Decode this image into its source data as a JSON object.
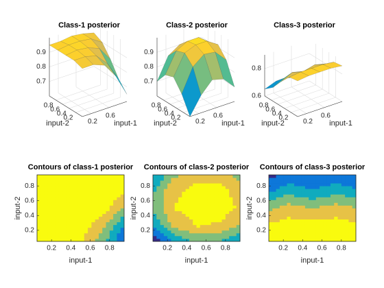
{
  "colormap": [
    "#352a87",
    "#0363e1",
    "#1485d4",
    "#06a7c6",
    "#38b99e",
    "#92bf73",
    "#d9ba56",
    "#fcce2e",
    "#f9fb0e"
  ],
  "chart_data": [
    {
      "type": "surface",
      "title": "Class-1 posterior",
      "xlabel": "input-1",
      "ylabel": "input-2",
      "x": [
        0,
        0.25,
        0.5,
        0.75,
        1
      ],
      "y": [
        0,
        0.25,
        0.5,
        0.75,
        1
      ],
      "z": [
        [
          0.93,
          0.93,
          0.9,
          0.8,
          0.65
        ],
        [
          0.95,
          0.95,
          0.93,
          0.85,
          0.72
        ],
        [
          0.95,
          0.96,
          0.95,
          0.92,
          0.82
        ],
        [
          0.95,
          0.96,
          0.96,
          0.95,
          0.9
        ],
        [
          0.95,
          0.95,
          0.96,
          0.95,
          0.93
        ]
      ],
      "xlim": [
        0,
        1
      ],
      "ylim": [
        0,
        1
      ],
      "zlim": [
        0.6,
        1
      ],
      "xticks": [
        0.2,
        0.6
      ],
      "yticks": [
        0.2,
        0.4,
        0.6,
        0.8
      ],
      "zticks": [
        0.7,
        0.8,
        0.9
      ]
    },
    {
      "type": "surface",
      "title": "Class-2 posterior",
      "xlabel": "input-1",
      "ylabel": "input-2",
      "x": [
        0,
        0.25,
        0.5,
        0.75,
        1
      ],
      "y": [
        0,
        0.25,
        0.5,
        0.75,
        1
      ],
      "z": [
        [
          0.6,
          0.72,
          0.8,
          0.78,
          0.7
        ],
        [
          0.72,
          0.88,
          0.94,
          0.93,
          0.85
        ],
        [
          0.8,
          0.94,
          0.97,
          0.97,
          0.92
        ],
        [
          0.78,
          0.92,
          0.96,
          0.96,
          0.9
        ],
        [
          0.7,
          0.85,
          0.9,
          0.9,
          0.82
        ]
      ],
      "xlim": [
        0,
        1
      ],
      "ylim": [
        0,
        1
      ],
      "zlim": [
        0.6,
        1
      ],
      "xticks": [
        0.2,
        0.6
      ],
      "yticks": [
        0.2,
        0.4,
        0.6,
        0.8
      ],
      "zticks": [
        0.7,
        0.8,
        0.9
      ]
    },
    {
      "type": "surface",
      "title": "Class-3 posterior",
      "xlabel": "input-1",
      "ylabel": "input-2",
      "x": [
        0,
        0.25,
        0.5,
        0.75,
        1
      ],
      "y": [
        0,
        0.25,
        0.5,
        0.75,
        1
      ],
      "z": [
        [
          0.86,
          0.87,
          0.87,
          0.87,
          0.86
        ],
        [
          0.85,
          0.86,
          0.86,
          0.86,
          0.85
        ],
        [
          0.78,
          0.82,
          0.8,
          0.82,
          0.8
        ],
        [
          0.7,
          0.74,
          0.72,
          0.74,
          0.72
        ],
        [
          0.65,
          0.68,
          0.68,
          0.68,
          0.66
        ]
      ],
      "xlim": [
        0,
        1
      ],
      "ylim": [
        0,
        1
      ],
      "zlim": [
        0.6,
        0.9
      ],
      "xticks": [
        0.2,
        0.6
      ],
      "yticks": [
        0.2,
        0.4,
        0.6,
        0.8
      ],
      "zticks": [
        0.6,
        0.8
      ]
    },
    {
      "type": "contour",
      "title": "Contours of class-1 posterior",
      "xlabel": "input-1",
      "ylabel": "input-2",
      "x": [
        0,
        0.25,
        0.5,
        0.75,
        1
      ],
      "y": [
        0,
        0.25,
        0.5,
        0.75,
        1
      ],
      "z": [
        [
          0.93,
          0.93,
          0.9,
          0.8,
          0.65
        ],
        [
          0.95,
          0.95,
          0.93,
          0.85,
          0.72
        ],
        [
          0.95,
          0.96,
          0.95,
          0.92,
          0.82
        ],
        [
          0.95,
          0.96,
          0.96,
          0.95,
          0.9
        ],
        [
          0.95,
          0.95,
          0.96,
          0.95,
          0.93
        ]
      ],
      "levels": [
        0.7,
        0.75,
        0.8,
        0.85,
        0.9
      ],
      "xlim": [
        0.05,
        0.95
      ],
      "ylim": [
        0.05,
        0.95
      ],
      "xticks": [
        0.2,
        0.4,
        0.6,
        0.8
      ],
      "yticks": [
        0.2,
        0.4,
        0.6,
        0.8
      ]
    },
    {
      "type": "contour",
      "title": "Contours of class-2 posterior",
      "xlabel": "input-1",
      "ylabel": "input-2",
      "x": [
        0,
        0.25,
        0.5,
        0.75,
        1
      ],
      "y": [
        0,
        0.25,
        0.5,
        0.75,
        1
      ],
      "z": [
        [
          0.6,
          0.72,
          0.8,
          0.78,
          0.7
        ],
        [
          0.72,
          0.88,
          0.94,
          0.93,
          0.85
        ],
        [
          0.8,
          0.94,
          0.97,
          0.97,
          0.92
        ],
        [
          0.78,
          0.92,
          0.96,
          0.96,
          0.9
        ],
        [
          0.7,
          0.85,
          0.9,
          0.9,
          0.82
        ]
      ],
      "levels": [
        0.7,
        0.76,
        0.82,
        0.88,
        0.94
      ],
      "xlim": [
        0.05,
        0.95
      ],
      "ylim": [
        0.05,
        0.95
      ],
      "xticks": [
        0.2,
        0.4,
        0.6,
        0.8
      ],
      "yticks": [
        0.2,
        0.4,
        0.6,
        0.8
      ]
    },
    {
      "type": "contour",
      "title": "Contours of class-3 posterior",
      "xlabel": "input-1",
      "ylabel": "input-2",
      "x": [
        0,
        0.25,
        0.5,
        0.75,
        1
      ],
      "y": [
        0,
        0.25,
        0.5,
        0.75,
        1
      ],
      "z": [
        [
          0.86,
          0.87,
          0.87,
          0.87,
          0.86
        ],
        [
          0.85,
          0.86,
          0.86,
          0.86,
          0.85
        ],
        [
          0.78,
          0.82,
          0.8,
          0.82,
          0.8
        ],
        [
          0.7,
          0.74,
          0.72,
          0.74,
          0.72
        ],
        [
          0.65,
          0.68,
          0.68,
          0.68,
          0.66
        ]
      ],
      "levels": [
        0.68,
        0.72,
        0.76,
        0.8,
        0.84
      ],
      "xlim": [
        0.05,
        0.95
      ],
      "ylim": [
        0.05,
        0.95
      ],
      "xticks": [
        0.2,
        0.4,
        0.6,
        0.8
      ],
      "yticks": [
        0.2,
        0.4,
        0.6,
        0.8
      ]
    }
  ]
}
